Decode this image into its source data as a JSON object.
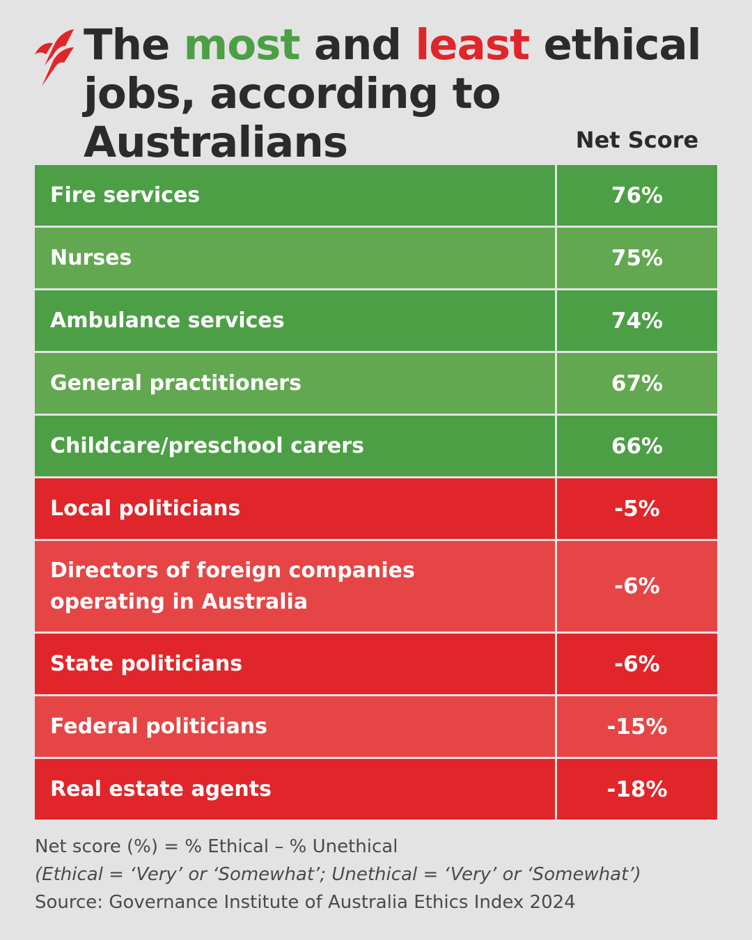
{
  "title": {
    "part1": "The ",
    "most": "most",
    "part2": " and ",
    "least": "least",
    "part3": " ethical jobs, according to Australians"
  },
  "colors": {
    "background": "#e3e3e3",
    "most": "#4c9f45",
    "least": "#e0262a",
    "logo": "#e0262a"
  },
  "logo_icon": "sbs-logo",
  "chart_data": {
    "type": "table",
    "columns": [
      "",
      "Net Score"
    ],
    "rows": [
      {
        "job": "Fire services",
        "score": "76%",
        "value": 76,
        "color": "#4c9f45"
      },
      {
        "job": "Nurses",
        "score": "75%",
        "value": 75,
        "color": "#62a851"
      },
      {
        "job": "Ambulance services",
        "score": "74%",
        "value": 74,
        "color": "#4c9f45"
      },
      {
        "job": "General practitioners",
        "score": "67%",
        "value": 67,
        "color": "#62a851"
      },
      {
        "job": "Childcare/preschool carers",
        "score": "66%",
        "value": 66,
        "color": "#4c9f45"
      },
      {
        "job": "Local politicians",
        "score": "-5%",
        "value": -5,
        "color": "#e0262a"
      },
      {
        "job": "Directors of foreign companies operating in Australia",
        "score": "-6%",
        "value": -6,
        "color": "#e64546"
      },
      {
        "job": "State politicians",
        "score": "-6%",
        "value": -6,
        "color": "#e0262a"
      },
      {
        "job": "Federal politicians",
        "score": "-15%",
        "value": -15,
        "color": "#e64546"
      },
      {
        "job": "Real estate agents",
        "score": "-18%",
        "value": -18,
        "color": "#e0262a"
      }
    ]
  },
  "footer": {
    "line1": "Net score (%) = % Ethical – % Unethical",
    "line2": "(Ethical = ‘Very’ or ‘Somewhat’; Unethical = ‘Very’ or ‘Somewhat’)",
    "line3": "Source: Governance Institute of Australia Ethics Index 2024"
  }
}
